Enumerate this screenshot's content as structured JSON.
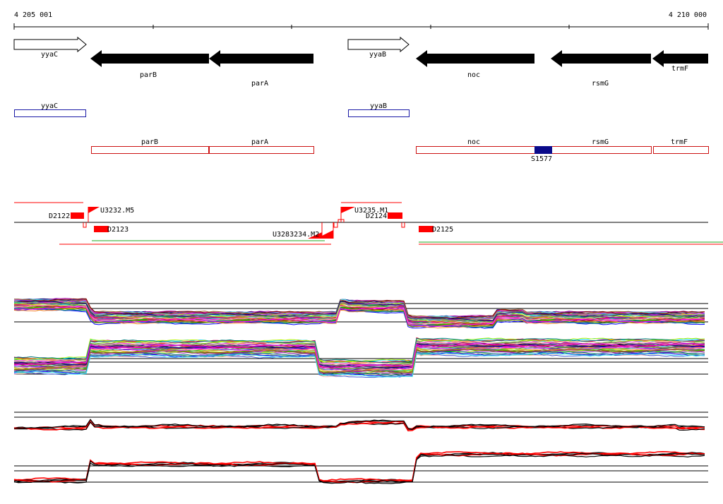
{
  "ruler": {
    "start_label": "4 205 001",
    "end_label": "4 210 000"
  },
  "genes": [
    {
      "name": "yyaC",
      "strand": "+"
    },
    {
      "name": "parB",
      "strand": "-"
    },
    {
      "name": "parA",
      "strand": "-"
    },
    {
      "name": "yyaB",
      "strand": "+"
    },
    {
      "name": "noc",
      "strand": "-"
    },
    {
      "name": "rsmG",
      "strand": "-"
    },
    {
      "name": "trmF",
      "strand": "-"
    }
  ],
  "feature_boxes": {
    "plus": [
      {
        "name": "yyaC"
      },
      {
        "name": "yyaB"
      }
    ],
    "minus": [
      {
        "name": "parB"
      },
      {
        "name": "parA"
      },
      {
        "name": "noc"
      },
      {
        "name": "rsmG"
      },
      {
        "name": "trmF"
      }
    ],
    "site": {
      "name": "S1577"
    }
  },
  "transcripts": {
    "upstream": [
      {
        "name": "U3232.M5"
      },
      {
        "name": "U3235.M1"
      },
      {
        "name": "U3283234.M2"
      }
    ],
    "downstream": [
      {
        "name": "D2122"
      },
      {
        "name": "D2123"
      },
      {
        "name": "D2124"
      },
      {
        "name": "D2125"
      }
    ]
  },
  "colors": {
    "gene_arrow": "#000000",
    "plus_box": "#1a1aa6",
    "minus_box": "#cc1111",
    "site_box": "#0a0a8a",
    "marker": "#ff0000",
    "green_line": "#22aa22"
  }
}
